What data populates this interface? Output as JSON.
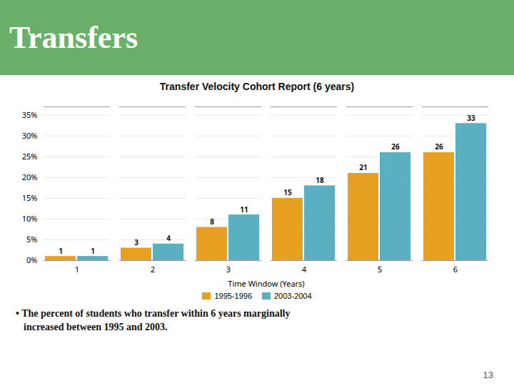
{
  "chart_data": {
    "type": "bar",
    "header": "Transfers",
    "header_color": "#6ab06a",
    "title": "Transfer Velocity Cohort Report (6 years)",
    "xlabel": "Time Window (Years)",
    "categories": [
      1,
      2,
      3,
      4,
      5,
      6
    ],
    "series": [
      {
        "name": "1995-1996",
        "color": "#E8A020",
        "values": [
          1,
          3,
          8,
          15,
          21,
          26
        ]
      },
      {
        "name": "2003-2004",
        "color": "#5AAFC0",
        "values": [
          1,
          4,
          11,
          18,
          26,
          33
        ]
      }
    ],
    "ylim": [
      0,
      37
    ],
    "yticks": [
      {
        "value": 0,
        "label": "0%"
      },
      {
        "value": 5,
        "label": "5%"
      },
      {
        "value": 10,
        "label": "10%"
      },
      {
        "value": 15,
        "label": "15%"
      },
      {
        "value": 20,
        "label": "20%"
      },
      {
        "value": 25,
        "label": "25%"
      },
      {
        "value": 30,
        "label": "30%"
      },
      {
        "value": 35,
        "label": "35%"
      }
    ],
    "grid": true,
    "data_labels": true,
    "legend": "bottom",
    "footnote": [
      "• The percent of students who transfer within 6 years marginally",
      "increased between 1995 and 2003."
    ],
    "page_number": "13"
  }
}
